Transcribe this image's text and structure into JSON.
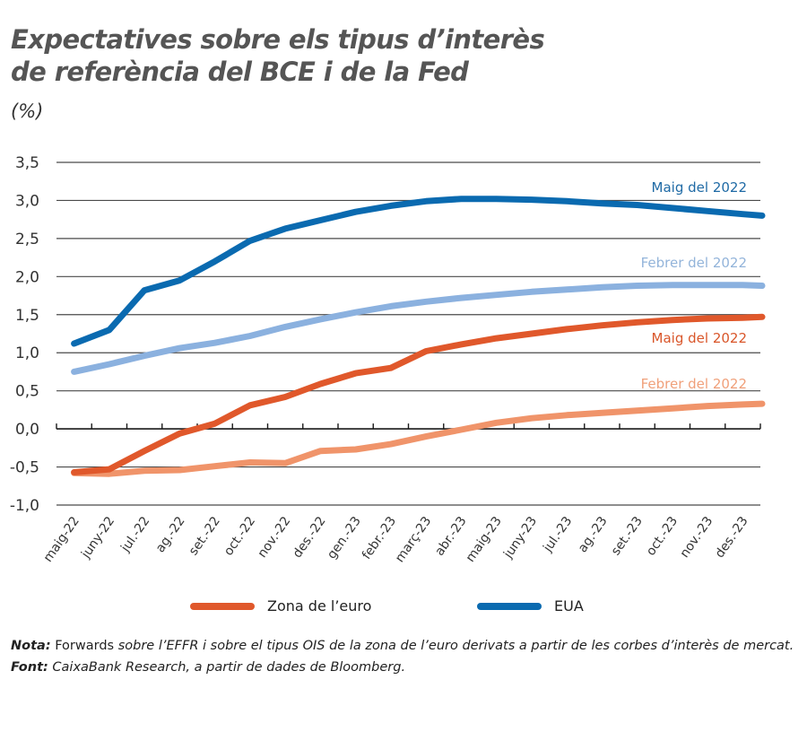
{
  "header": {
    "title_line1": "Expectatives sobre els tipus d’interès",
    "title_line2": "de referència del BCE i de la Fed",
    "unit": "(%)"
  },
  "chart_data": {
    "type": "line",
    "title": "Expectatives sobre els tipus d’interès de referència del BCE i de la Fed",
    "ylabel": "(%)",
    "xlabel": "",
    "ylim": [
      -1.0,
      3.5
    ],
    "yticks": [
      3.5,
      3.0,
      2.5,
      2.0,
      1.5,
      1.0,
      0.5,
      0.0,
      -0.5,
      -1.0
    ],
    "ytick_labels": [
      "3,5",
      "3,0",
      "2,5",
      "2,0",
      "1,5",
      "1,0",
      "0,5",
      "0,0",
      "-0,5",
      "-1,0"
    ],
    "grid": true,
    "categories": [
      "maig-22",
      "juny-22",
      "jul.-22",
      "ag.-22",
      "set.-22",
      "oct.-22",
      "nov.-22",
      "des.-22",
      "gen.-23",
      "febr.-23",
      "març-23",
      "abr.-23",
      "maig-23",
      "juny-23",
      "jul.-23",
      "ag.-23",
      "set.-23",
      "oct.-23",
      "nov.-23",
      "des.-23"
    ],
    "series": [
      {
        "name": "EUA – Maig del 2022",
        "group": "EUA",
        "label": "Maig del 2022",
        "color": "#0a6ab0",
        "values": [
          1.12,
          1.3,
          1.82,
          1.95,
          2.2,
          2.47,
          2.63,
          2.74,
          2.85,
          2.93,
          2.99,
          3.02,
          3.02,
          3.01,
          2.99,
          2.96,
          2.94,
          2.9,
          2.86,
          2.82
        ],
        "end_value": 2.8
      },
      {
        "name": "EUA – Febrer del 2022",
        "group": "EUA",
        "label": "Febrer del 2022",
        "color": "#8bb1df",
        "values": [
          0.75,
          0.85,
          0.96,
          1.06,
          1.13,
          1.22,
          1.34,
          1.44,
          1.53,
          1.61,
          1.67,
          1.72,
          1.76,
          1.8,
          1.83,
          1.86,
          1.88,
          1.89,
          1.89,
          1.89
        ],
        "end_value": 1.88
      },
      {
        "name": "Zona de l’euro – Maig del 2022",
        "group": "Zona de l’euro",
        "label": "Maig del 2022",
        "color": "#e0582b",
        "values": [
          -0.57,
          -0.53,
          -0.29,
          -0.06,
          0.07,
          0.31,
          0.42,
          0.59,
          0.73,
          0.8,
          1.02,
          1.11,
          1.19,
          1.25,
          1.31,
          1.36,
          1.4,
          1.43,
          1.45,
          1.46
        ],
        "end_value": 1.47
      },
      {
        "name": "Zona de l’euro – Febrer del 2022",
        "group": "Zona de l’euro",
        "label": "Febrer del 2022",
        "color": "#f0946a",
        "values": [
          -0.58,
          -0.59,
          -0.55,
          -0.54,
          -0.49,
          -0.44,
          -0.45,
          -0.29,
          -0.27,
          -0.2,
          -0.1,
          -0.01,
          0.08,
          0.14,
          0.18,
          0.21,
          0.24,
          0.27,
          0.3,
          0.32
        ],
        "end_value": 0.33
      }
    ],
    "annotations": [
      {
        "text": "Maig del 2022",
        "series": 0
      },
      {
        "text": "Febrer del 2022",
        "series": 1
      },
      {
        "text": "Maig del 2022",
        "series": 2
      },
      {
        "text": "Febrer del 2022",
        "series": 3
      }
    ],
    "legend": {
      "placement": "bottom",
      "entries": [
        {
          "label": "Zona de l’euro",
          "color": "#e0582b"
        },
        {
          "label": "EUA",
          "color": "#0a6ab0"
        }
      ]
    }
  },
  "notes": {
    "nota_label": "Nota:",
    "nota_text_regular": " Forwards",
    "nota_text_italic": " sobre l’EFFR i sobre el tipus OIS de la zona de l’euro derivats a partir de les corbes d’interès de mercat.",
    "font_label": "Font:",
    "font_text": " CaixaBank Research, a partir de dades de Bloomberg."
  }
}
